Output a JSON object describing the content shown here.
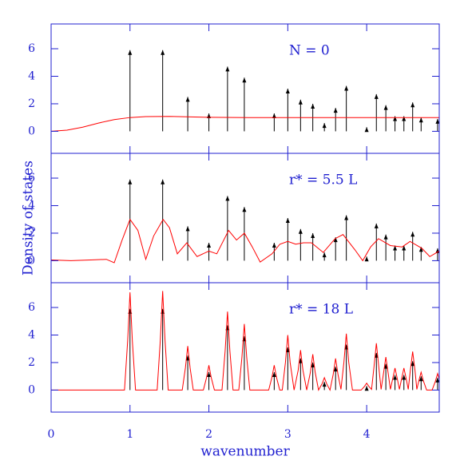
{
  "chart_data": [
    {
      "type": "line",
      "annotation": "N = 0",
      "xlim": [
        0,
        4.92
      ],
      "xticks": [
        0,
        1,
        2,
        3,
        4
      ],
      "ylim": [
        -1.6,
        7.8
      ],
      "yticks": [
        0,
        2,
        4,
        6
      ],
      "series": [
        {
          "mark": "arrow",
          "color": "#000000",
          "x": [
            1,
            1.414,
            1.732,
            2,
            2.236,
            2.449,
            2.828,
            3,
            3.162,
            3.317,
            3.464,
            3.606,
            3.742,
            4,
            4.123,
            4.243,
            4.359,
            4.472,
            4.583,
            4.69,
            4.899
          ],
          "values": [
            5.9,
            5.9,
            2.5,
            1.3,
            4.7,
            3.9,
            1.3,
            3.1,
            2.3,
            2.0,
            0.6,
            1.7,
            3.3,
            0.3,
            2.7,
            1.9,
            1.1,
            1.1,
            2.1,
            1.0,
            0.9
          ]
        },
        {
          "mark": "line",
          "color": "#ff0000",
          "x": [
            0,
            0.2,
            0.4,
            0.6,
            0.8,
            1.0,
            1.2,
            1.5,
            2,
            2.5,
            3,
            3.5,
            4,
            4.5,
            4.92
          ],
          "values": [
            0,
            0.08,
            0.3,
            0.6,
            0.85,
            1.0,
            1.07,
            1.08,
            1.02,
            1.0,
            1.0,
            1.0,
            1.0,
            1.0,
            1.0
          ]
        }
      ]
    },
    {
      "type": "line",
      "annotation": "r* = 5.5 L",
      "ylabel": "Density of states",
      "xlim": [
        0,
        4.92
      ],
      "xticks": [
        0,
        1,
        2,
        3,
        4
      ],
      "ylim": [
        -1.6,
        7.8
      ],
      "yticks": [
        0,
        2,
        4,
        6
      ],
      "series": [
        {
          "mark": "arrow",
          "color": "#000000",
          "x": [
            1,
            1.414,
            1.732,
            2,
            2.236,
            2.449,
            2.828,
            3,
            3.162,
            3.317,
            3.464,
            3.606,
            3.742,
            4,
            4.123,
            4.243,
            4.359,
            4.472,
            4.583,
            4.69,
            4.899
          ],
          "values": [
            5.9,
            5.9,
            2.5,
            1.3,
            4.7,
            3.9,
            1.3,
            3.1,
            2.3,
            2.0,
            0.6,
            1.7,
            3.3,
            0.3,
            2.7,
            1.9,
            1.1,
            1.1,
            2.1,
            1.0,
            0.9
          ]
        },
        {
          "mark": "line",
          "color": "#ff0000",
          "x": [
            0,
            0.25,
            0.5,
            0.7,
            0.8,
            0.9,
            1.0,
            1.1,
            1.2,
            1.3,
            1.42,
            1.5,
            1.6,
            1.72,
            1.85,
            2.0,
            2.1,
            2.25,
            2.35,
            2.45,
            2.55,
            2.65,
            2.8,
            2.9,
            3.0,
            3.1,
            3.2,
            3.3,
            3.45,
            3.6,
            3.7,
            3.85,
            3.95,
            4.05,
            4.15,
            4.3,
            4.45,
            4.55,
            4.7,
            4.8,
            4.92
          ],
          "values": [
            0.05,
            0.0,
            0.05,
            0.1,
            -0.15,
            1.5,
            3.0,
            2.2,
            0.1,
            1.8,
            3.0,
            2.4,
            0.5,
            1.3,
            0.3,
            0.7,
            0.5,
            2.2,
            1.5,
            2.0,
            1.0,
            -0.1,
            0.5,
            1.2,
            1.4,
            1.2,
            1.3,
            1.3,
            0.6,
            1.6,
            1.9,
            0.8,
            0.0,
            1.0,
            1.6,
            1.1,
            1.0,
            1.4,
            0.9,
            0.3,
            0.7
          ]
        }
      ]
    },
    {
      "type": "line",
      "annotation": "r* = 18 L",
      "xlabel": "wavenumber",
      "xlim": [
        0,
        4.92
      ],
      "xticks": [
        0,
        1,
        2,
        3,
        4
      ],
      "ylim": [
        -1.6,
        7.8
      ],
      "yticks": [
        0,
        2,
        4,
        6
      ],
      "series": [
        {
          "mark": "arrow",
          "color": "#000000",
          "x": [
            1,
            1.414,
            1.732,
            2,
            2.236,
            2.449,
            2.828,
            3,
            3.162,
            3.317,
            3.464,
            3.606,
            3.742,
            4,
            4.123,
            4.243,
            4.359,
            4.472,
            4.583,
            4.69,
            4.899
          ],
          "values": [
            5.9,
            5.9,
            2.5,
            1.3,
            4.7,
            3.9,
            1.3,
            3.1,
            2.3,
            2.0,
            0.6,
            1.7,
            3.3,
            0.3,
            2.7,
            1.9,
            1.1,
            1.1,
            2.1,
            1.0,
            0.9
          ]
        },
        {
          "mark": "line",
          "color": "#ff0000",
          "x": [
            0,
            0.93,
            0.97,
            1.0,
            1.03,
            1.07,
            1.344,
            1.384,
            1.414,
            1.444,
            1.484,
            1.662,
            1.702,
            1.732,
            1.762,
            1.802,
            1.93,
            1.97,
            2.0,
            2.03,
            2.07,
            2.166,
            2.206,
            2.236,
            2.266,
            2.306,
            2.379,
            2.419,
            2.449,
            2.479,
            2.519,
            2.758,
            2.798,
            2.828,
            2.858,
            2.898,
            2.93,
            2.97,
            3.0,
            3.03,
            3.08,
            3.132,
            3.162,
            3.192,
            3.24,
            3.287,
            3.317,
            3.347,
            3.39,
            3.434,
            3.464,
            3.494,
            3.535,
            3.576,
            3.606,
            3.636,
            3.674,
            3.712,
            3.742,
            3.772,
            3.82,
            3.93,
            3.97,
            4.0,
            4.03,
            4.062,
            4.093,
            4.123,
            4.153,
            4.183,
            4.213,
            4.243,
            4.273,
            4.301,
            4.329,
            4.359,
            4.389,
            4.415,
            4.442,
            4.472,
            4.502,
            4.527,
            4.553,
            4.583,
            4.613,
            4.636,
            4.66,
            4.69,
            4.72,
            4.76,
            4.829,
            4.869,
            4.899,
            4.92
          ],
          "values": [
            0,
            0,
            3.55,
            7.1,
            3.55,
            0,
            0,
            3.6,
            7.2,
            3.6,
            0,
            0,
            1.6,
            3.2,
            1.6,
            0,
            0,
            0.9,
            1.8,
            0.9,
            0,
            0,
            2.85,
            5.7,
            2.85,
            0,
            0,
            2.4,
            4.8,
            2.4,
            0,
            0,
            0.9,
            1.8,
            0.9,
            0,
            0,
            2.0,
            4.0,
            2.0,
            0,
            1.45,
            2.9,
            1.45,
            0,
            1.3,
            2.6,
            1.3,
            0,
            0.45,
            0.9,
            0.45,
            0,
            1.15,
            2.3,
            1.15,
            0.05,
            2.05,
            4.1,
            2.05,
            0,
            0,
            0.25,
            0.5,
            0.25,
            0.05,
            1.7,
            3.4,
            1.7,
            0.05,
            1.2,
            2.4,
            1.2,
            0.05,
            0.8,
            1.6,
            0.8,
            0.05,
            0.8,
            1.6,
            0.8,
            0.05,
            1.4,
            2.8,
            1.4,
            0.05,
            0.65,
            1.3,
            0.65,
            0,
            0,
            0.6,
            1.2,
            0.8
          ]
        }
      ]
    }
  ]
}
